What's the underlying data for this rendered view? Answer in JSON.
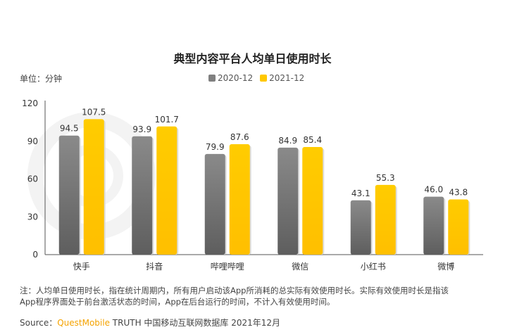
{
  "title": "典型内容平台人均单日使用时长",
  "unit": "单位：分钟",
  "watermark": "QUESTMOBILE",
  "note_line1": "注：人均单日使用时长，指在统计周期内，所有用户启动该App所消耗的总实际有效使用时长。实际有效使用时长是指该",
  "note_line2": "App程序界面处于前台激活状态的时间，App在后台运行的时间，不计入有效使用时间。",
  "source_label": "Source：",
  "source_brand": "QuestMobile",
  "source_rest": " TRUTH 中国移动互联网数据库 2021年12月",
  "colors": {
    "s2020": "#808080",
    "s2021": "#ffc800"
  },
  "chart_data": {
    "type": "bar",
    "title": "典型内容平台人均单日使用时长",
    "ylabel": "单位：分钟",
    "categories": [
      "快手",
      "抖音",
      "哔哩哔哩",
      "微信",
      "小红书",
      "微博"
    ],
    "series": [
      {
        "name": "2020-12",
        "values": [
          94.5,
          93.9,
          79.9,
          84.9,
          43.1,
          46.0
        ]
      },
      {
        "name": "2021-12",
        "values": [
          107.5,
          101.7,
          87.6,
          85.4,
          55.3,
          43.8
        ]
      }
    ],
    "ylim": [
      0,
      120
    ],
    "yticks": [
      0,
      30,
      60,
      90,
      120
    ],
    "legend": "top-center",
    "grid": false
  }
}
